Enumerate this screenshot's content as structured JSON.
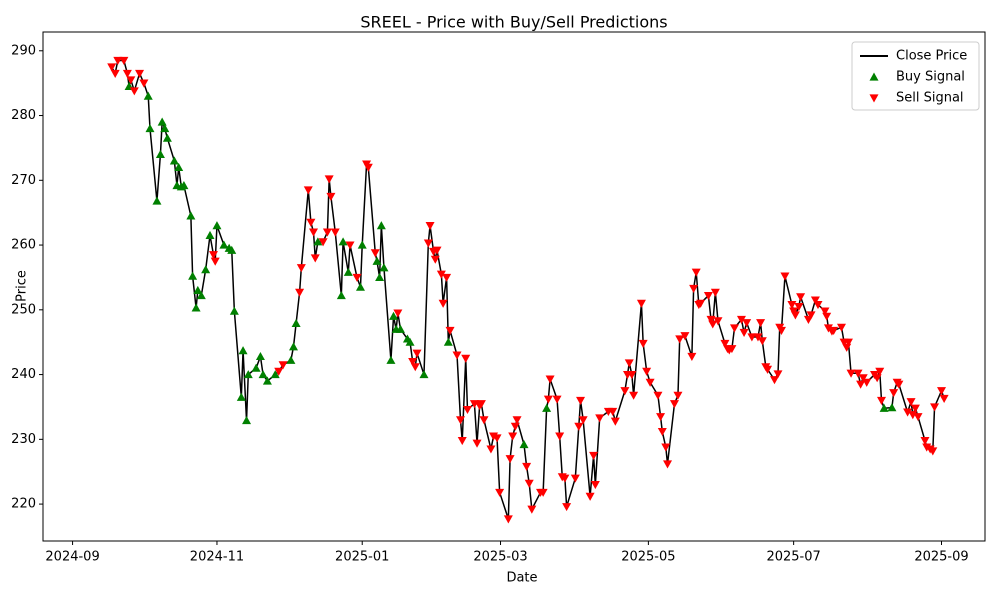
{
  "chart_data": {
    "type": "line",
    "title": "SREEL - Price with Buy/Sell Predictions",
    "xlabel": "Date",
    "ylabel": "Price",
    "xlim": [
      2024.633,
      2025.716
    ],
    "ylim": [
      214.3,
      292.9
    ],
    "xticks": [
      {
        "value": 2024.667,
        "label": "2024-09"
      },
      {
        "value": 2024.833,
        "label": "2024-11"
      },
      {
        "value": 2025.0,
        "label": "2025-01"
      },
      {
        "value": 2025.159,
        "label": "2025-03"
      },
      {
        "value": 2025.329,
        "label": "2025-05"
      },
      {
        "value": 2025.496,
        "label": "2025-07"
      },
      {
        "value": 2025.666,
        "label": "2025-09"
      }
    ],
    "yticks": [
      220,
      230,
      240,
      250,
      260,
      270,
      280,
      290
    ],
    "legend": "upper right",
    "x": [
      2024.712,
      2024.716,
      2024.719,
      2024.726,
      2024.73,
      2024.732,
      2024.734,
      2024.738,
      2024.744,
      2024.749,
      2024.754,
      2024.756,
      2024.764,
      2024.768,
      2024.77,
      2024.773,
      2024.776,
      2024.784,
      2024.787,
      2024.789,
      2024.792,
      2024.795,
      2024.803,
      2024.805,
      2024.809,
      2024.811,
      2024.815,
      2024.82,
      2024.825,
      2024.829,
      2024.831,
      2024.833,
      2024.841,
      2024.847,
      2024.85,
      2024.853,
      2024.861,
      2024.863,
      2024.867,
      2024.869,
      2024.878,
      2024.883,
      2024.886,
      2024.891,
      2024.9,
      2024.904,
      2024.909,
      2024.918,
      2024.921,
      2024.924,
      2024.928,
      2024.93,
      2024.938,
      2024.941,
      2024.944,
      2024.946,
      2024.949,
      2024.955,
      2024.96,
      2024.962,
      2024.964,
      2024.969,
      2024.976,
      2024.978,
      2024.984,
      2024.986,
      2024.994,
      2024.998,
      2025.0,
      2025.005,
      2025.007,
      2025.015,
      2025.017,
      2025.02,
      2025.022,
      2025.025,
      2025.033,
      2025.036,
      2025.039,
      2025.041,
      2025.044,
      2025.052,
      2025.055,
      2025.058,
      2025.061,
      2025.063,
      2025.071,
      2025.076,
      2025.078,
      2025.082,
      2025.084,
      2025.086,
      2025.091,
      2025.093,
      2025.097,
      2025.099,
      2025.101,
      2025.109,
      2025.113,
      2025.115,
      2025.119,
      2025.121,
      2025.129,
      2025.132,
      2025.135,
      2025.137,
      2025.14,
      2025.148,
      2025.151,
      2025.155,
      2025.158,
      2025.168,
      2025.17,
      2025.173,
      2025.176,
      2025.178,
      2025.186,
      2025.189,
      2025.192,
      2025.195,
      2025.205,
      2025.208,
      2025.212,
      2025.214,
      2025.216,
      2025.224,
      2025.227,
      2025.23,
      2025.233,
      2025.235,
      2025.245,
      2025.249,
      2025.251,
      2025.254,
      2025.262,
      2025.266,
      2025.268,
      2025.273,
      2025.283,
      2025.288,
      2025.291,
      2025.302,
      2025.305,
      2025.307,
      2025.31,
      2025.312,
      2025.321,
      2025.323,
      2025.327,
      2025.331,
      2025.34,
      2025.343,
      2025.345,
      2025.349,
      2025.351,
      2025.359,
      2025.363,
      2025.365,
      2025.371,
      2025.379,
      2025.381,
      2025.384,
      2025.387,
      2025.389,
      2025.398,
      2025.401,
      2025.403,
      2025.406,
      2025.409,
      2025.417,
      2025.42,
      2025.422,
      2025.425,
      2025.428,
      2025.436,
      2025.439,
      2025.442,
      2025.448,
      2025.455,
      2025.458,
      2025.46,
      2025.464,
      2025.466,
      2025.474,
      2025.478,
      2025.48,
      2025.482,
      2025.486,
      2025.494,
      2025.496,
      2025.498,
      2025.502,
      2025.504,
      2025.513,
      2025.516,
      2025.521,
      2025.524,
      2025.532,
      2025.534,
      2025.536,
      2025.54,
      2025.542,
      2025.551,
      2025.554,
      2025.557,
      2025.559,
      2025.562,
      2025.57,
      2025.573,
      2025.576,
      2025.58,
      2025.589,
      2025.592,
      2025.595,
      2025.597,
      2025.6,
      2025.609,
      2025.611,
      2025.615,
      2025.617,
      2025.627,
      2025.631,
      2025.633,
      2025.636,
      2025.639,
      2025.647,
      2025.649,
      2025.653,
      2025.656,
      2025.658,
      2025.666,
      2025.669
    ],
    "series": [
      {
        "name": "Close Price",
        "type": "line",
        "color": "#000000",
        "values": [
          287.5,
          286.5,
          288.5,
          288.5,
          286.5,
          284.5,
          285.5,
          283.8,
          286.5,
          285,
          283,
          278,
          266.8,
          274,
          279,
          278,
          276.5,
          273,
          269.2,
          272,
          269,
          269.2,
          264.5,
          255.2,
          250.3,
          253,
          252.2,
          256.2,
          261.5,
          258.5,
          257.5,
          263,
          260,
          259.5,
          259.2,
          249.8,
          236.5,
          243.7,
          232.9,
          240,
          241,
          242.8,
          240,
          239,
          240,
          240.5,
          241.5,
          242.2,
          244.3,
          247.9,
          252.7,
          256.5,
          268.5,
          263.5,
          262,
          258,
          260.5,
          260.5,
          262,
          270.2,
          267.5,
          262,
          252.2,
          260.5,
          255.8,
          260,
          255,
          253.5,
          260,
          272.5,
          272,
          258.8,
          257.5,
          255,
          263,
          256.5,
          242.2,
          249,
          247,
          249.5,
          247,
          245.5,
          245,
          242,
          241.2,
          243.3,
          240,
          260.3,
          263,
          259,
          257.8,
          259.2,
          255.5,
          251,
          255,
          245,
          246.8,
          243,
          233,
          229.8,
          242.5,
          234.6,
          235.5,
          229.4,
          235.2,
          235.5,
          233,
          228.5,
          230.5,
          230.2,
          221.8,
          217.7,
          227,
          230.5,
          232,
          233,
          229.2,
          225.8,
          223.2,
          219.2,
          221.8,
          221.8,
          234.8,
          236.2,
          239.3,
          236.2,
          230.5,
          224.2,
          224,
          219.6,
          224,
          232,
          236,
          233,
          221.2,
          227.5,
          223,
          233.3,
          234.3,
          234.3,
          232.8,
          237.5,
          240,
          241.8,
          240,
          236.8,
          251,
          244.8,
          240.5,
          238.8,
          236.8,
          233.5,
          231.2,
          228.8,
          226.2,
          235.5,
          236.8,
          245.5,
          246,
          242.8,
          253.3,
          255.8,
          250.8,
          251,
          252.2,
          248.5,
          247.8,
          252.7,
          248.3,
          244.8,
          244,
          243.8,
          244,
          247.2,
          248.5,
          246.5,
          248,
          245.8,
          245.8,
          248,
          245.2,
          241.2,
          240.8,
          239.2,
          240.1,
          247.3,
          246.8,
          255.2,
          250.8,
          249.8,
          249.2,
          250.5,
          252,
          248.5,
          249.2,
          251.5,
          250.8,
          249.8,
          249,
          247.2,
          246.7,
          246.8,
          247.3,
          245,
          244.2,
          245,
          240.2,
          240.2,
          238.5,
          239.5,
          238.8,
          240,
          239.5,
          240.5,
          236,
          234.8,
          234.9,
          237.2,
          238.8,
          238.5,
          234.2,
          235.8,
          233.8,
          234.8,
          233.5,
          229.8,
          228.8,
          228.5,
          228.2,
          235,
          237.5,
          236.3
        ]
      },
      {
        "name": "Buy Signal",
        "type": "scatter",
        "marker": "triangle-up",
        "color": "#008000",
        "values": [
          null,
          null,
          null,
          null,
          null,
          284.5,
          null,
          null,
          null,
          null,
          283,
          278,
          266.8,
          274,
          279,
          278,
          276.5,
          273,
          269.2,
          272,
          269,
          269.2,
          264.5,
          255.2,
          250.3,
          253,
          252.2,
          256.2,
          261.5,
          null,
          null,
          263,
          260,
          259.5,
          259.2,
          249.8,
          236.5,
          243.7,
          232.9,
          240,
          241,
          242.8,
          240,
          239,
          240,
          null,
          null,
          242.2,
          244.3,
          247.9,
          null,
          null,
          null,
          null,
          null,
          null,
          260.5,
          null,
          null,
          null,
          null,
          null,
          252.2,
          260.5,
          255.8,
          null,
          null,
          253.5,
          260,
          null,
          null,
          null,
          257.5,
          255,
          263,
          256.5,
          242.2,
          249,
          247,
          null,
          247,
          245.5,
          245,
          null,
          null,
          null,
          240,
          null,
          null,
          null,
          null,
          null,
          null,
          null,
          null,
          245,
          null,
          null,
          null,
          null,
          null,
          null,
          null,
          null,
          null,
          null,
          null,
          null,
          null,
          null,
          null,
          null,
          null,
          null,
          null,
          null,
          229.2,
          null,
          null,
          null,
          null,
          null,
          234.8,
          null,
          null,
          null,
          null,
          null,
          null,
          null,
          null,
          null,
          null,
          null,
          null,
          null,
          null,
          null,
          null,
          null,
          null,
          null,
          null,
          null,
          null,
          null,
          null,
          null,
          null,
          null,
          null,
          null,
          null,
          null,
          null,
          null,
          null,
          null,
          null,
          null,
          null,
          null,
          null,
          null,
          null,
          null,
          null,
          null,
          null,
          null,
          null,
          null,
          null,
          null,
          null,
          null,
          null,
          null,
          null,
          null,
          null,
          null,
          null,
          null,
          null,
          null,
          null,
          null,
          null,
          null,
          null,
          null,
          null,
          null,
          null,
          null,
          null,
          null,
          null,
          null,
          null,
          null,
          null,
          null,
          null,
          null,
          null,
          null,
          null,
          null,
          null,
          null,
          null,
          null,
          null,
          234.8,
          234.9,
          null,
          null,
          null,
          null,
          null,
          null,
          null,
          null,
          null,
          null,
          null,
          null,
          null,
          null,
          null
        ]
      },
      {
        "name": "Sell Signal",
        "type": "scatter",
        "marker": "triangle-down",
        "color": "#ff0000",
        "values": [
          287.5,
          286.5,
          288.5,
          288.5,
          286.5,
          null,
          285.5,
          283.8,
          286.5,
          285,
          null,
          null,
          null,
          null,
          null,
          null,
          null,
          null,
          null,
          null,
          null,
          null,
          null,
          null,
          null,
          null,
          null,
          null,
          null,
          258.5,
          257.5,
          null,
          null,
          null,
          null,
          null,
          null,
          null,
          null,
          null,
          null,
          null,
          null,
          null,
          null,
          240.5,
          241.5,
          null,
          null,
          null,
          252.7,
          256.5,
          268.5,
          263.5,
          262,
          258,
          null,
          260.5,
          262,
          270.2,
          267.5,
          262,
          null,
          null,
          null,
          260,
          255,
          null,
          null,
          272.5,
          272,
          258.8,
          null,
          null,
          null,
          null,
          null,
          null,
          null,
          249.5,
          null,
          null,
          null,
          242,
          241.2,
          243.3,
          null,
          260.3,
          263,
          259,
          257.8,
          259.2,
          255.5,
          251,
          255,
          null,
          246.8,
          243,
          233,
          229.8,
          242.5,
          234.6,
          235.5,
          229.4,
          235.2,
          235.5,
          233,
          228.5,
          230.5,
          230.2,
          221.8,
          217.7,
          227,
          230.5,
          232,
          233,
          null,
          225.8,
          223.2,
          219.2,
          221.8,
          221.8,
          null,
          236.2,
          239.3,
          236.2,
          230.5,
          224.2,
          224,
          219.6,
          224,
          232,
          236,
          233,
          221.2,
          227.5,
          223,
          233.3,
          234.3,
          234.3,
          232.8,
          237.5,
          240,
          241.8,
          240,
          236.8,
          251,
          244.8,
          240.5,
          238.8,
          236.8,
          233.5,
          231.2,
          228.8,
          226.2,
          235.5,
          236.8,
          245.5,
          246,
          242.8,
          253.3,
          255.8,
          250.8,
          251,
          252.2,
          248.5,
          247.8,
          252.7,
          248.3,
          244.8,
          244,
          243.8,
          244,
          247.2,
          248.5,
          246.5,
          248,
          245.8,
          245.8,
          248,
          245.2,
          241.2,
          240.8,
          239.2,
          240.1,
          247.3,
          246.8,
          255.2,
          250.8,
          249.8,
          249.2,
          250.5,
          252,
          248.5,
          249.2,
          251.5,
          250.8,
          249.8,
          249,
          247.2,
          246.7,
          246.8,
          247.3,
          245,
          244.2,
          245,
          240.2,
          240.2,
          238.5,
          239.5,
          238.8,
          240,
          239.5,
          240.5,
          236,
          null,
          null,
          237.2,
          238.8,
          238.5,
          234.2,
          235.8,
          233.8,
          234.8,
          233.5,
          229.8,
          228.8,
          228.5,
          228.2,
          235,
          237.5,
          236.3
        ]
      }
    ]
  }
}
